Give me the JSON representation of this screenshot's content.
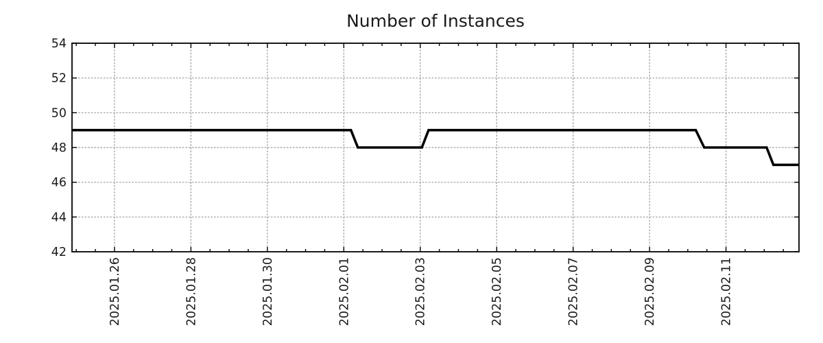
{
  "colors": {
    "line": "#000000",
    "grid": "#9a9a9a",
    "axis": "#000000",
    "text": "#1a1a1a",
    "background": "#ffffff"
  },
  "chart_data": {
    "type": "line",
    "title": "Number of Instances",
    "xlabel": "",
    "ylabel": "",
    "legend": "none",
    "grid": "dotted gray at major ticks",
    "y_range": [
      42,
      54
    ],
    "y_ticks": [
      42,
      44,
      46,
      48,
      50,
      52,
      54
    ],
    "x_range": [
      "2025-01-24T21:20",
      "2025-02-12T21:50"
    ],
    "x_major_ticks": [
      {
        "date": "2025-01-26",
        "label": "2025.01.26"
      },
      {
        "date": "2025-01-28",
        "label": "2025.01.28"
      },
      {
        "date": "2025-01-30",
        "label": "2025.01.30"
      },
      {
        "date": "2025-02-01",
        "label": "2025.02.01"
      },
      {
        "date": "2025-02-03",
        "label": "2025.02.03"
      },
      {
        "date": "2025-02-05",
        "label": "2025.02.05"
      },
      {
        "date": "2025-02-07",
        "label": "2025.02.07"
      },
      {
        "date": "2025-02-09",
        "label": "2025.02.09"
      },
      {
        "date": "2025-02-11",
        "label": "2025.02.11"
      }
    ],
    "x_minor_tick_interval_days": 0.5,
    "series": [
      {
        "name": "instances",
        "color": "#000000",
        "points": [
          [
            "2025-01-24T21:20",
            49
          ],
          [
            "2025-02-01T04:30",
            49
          ],
          [
            "2025-02-01T08:50",
            48
          ],
          [
            "2025-02-03T01:00",
            48
          ],
          [
            "2025-02-03T05:15",
            49
          ],
          [
            "2025-02-10T05:00",
            49
          ],
          [
            "2025-02-10T10:20",
            48
          ],
          [
            "2025-02-12T01:30",
            48
          ],
          [
            "2025-02-12T05:45",
            47
          ],
          [
            "2025-02-12T21:50",
            47
          ]
        ]
      }
    ]
  }
}
